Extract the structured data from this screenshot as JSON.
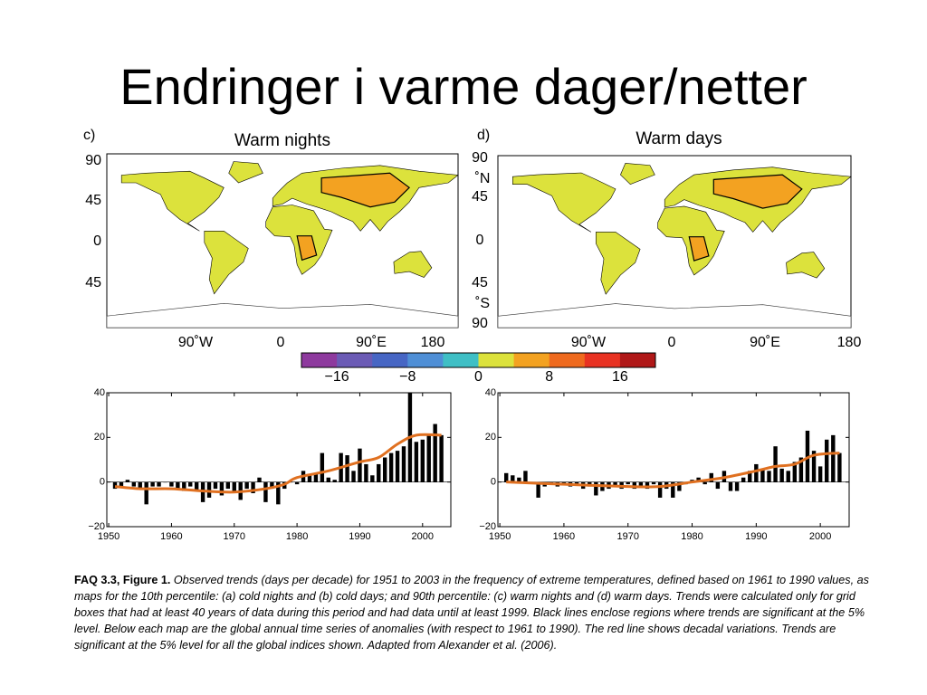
{
  "title": "Endringer i varme dager/netter",
  "maps": [
    {
      "label": "c)",
      "title": "Warm nights",
      "lat_labels": [
        "90",
        "45",
        "0",
        "45"
      ],
      "lon_labels": [
        "90˚W",
        "0",
        "90˚E",
        "180"
      ]
    },
    {
      "label": "d)",
      "title": "Warm days",
      "lat_labels": [
        "90",
        "˚N",
        "45",
        "0",
        "45",
        "˚S",
        "90"
      ],
      "lon_labels": [
        "90˚W",
        "0",
        "90˚E",
        "180"
      ]
    }
  ],
  "colorbar": {
    "lim": [
      -20,
      20
    ],
    "ticks": [
      {
        "value": -16,
        "label": "−16"
      },
      {
        "value": -8,
        "label": "−8"
      },
      0,
      8,
      16
    ],
    "colors": [
      "#8e3a9e",
      "#6b5bb5",
      "#4766c4",
      "#4f8fd6",
      "#3fbfc5",
      "#dce23c",
      "#f3a221",
      "#ef6a1e",
      "#e83222",
      "#b01818"
    ]
  },
  "chart_data": [
    {
      "type": "bar",
      "x": [
        1951,
        1952,
        1953,
        1954,
        1955,
        1956,
        1957,
        1958,
        1959,
        1960,
        1961,
        1962,
        1963,
        1964,
        1965,
        1966,
        1967,
        1968,
        1969,
        1970,
        1971,
        1972,
        1973,
        1974,
        1975,
        1976,
        1977,
        1978,
        1979,
        1980,
        1981,
        1982,
        1983,
        1984,
        1985,
        1986,
        1987,
        1988,
        1989,
        1990,
        1991,
        1992,
        1993,
        1994,
        1995,
        1996,
        1997,
        1998,
        1999,
        2000,
        2001,
        2002,
        2003
      ],
      "series": [
        {
          "color": "#000000",
          "values": [
            -3,
            -2,
            1,
            -2,
            -3,
            -10,
            -2,
            -2,
            0,
            -2,
            -3,
            -4,
            -2,
            -4,
            -9,
            -7,
            -3,
            -6,
            -3,
            -4,
            -8,
            -3,
            -5,
            2,
            -9,
            -3,
            -10,
            -3,
            0,
            -1,
            5,
            3,
            4,
            13,
            2,
            1,
            13,
            12,
            5,
            15,
            8,
            3,
            8,
            11,
            13,
            14,
            16,
            40,
            18,
            19,
            21,
            26,
            21
          ]
        },
        {
          "type": "line",
          "color": "#e07020",
          "x": [
            1951,
            1955,
            1960,
            1965,
            1970,
            1975,
            1978,
            1980,
            1985,
            1990,
            1993,
            1996,
            1999,
            2003
          ],
          "values": [
            -2,
            -3,
            -3,
            -4,
            -4.5,
            -3,
            -1,
            2,
            5,
            9,
            11,
            17,
            21,
            21
          ]
        }
      ],
      "xlim": [
        1949.7,
        2004.5
      ],
      "xticks": [
        1950,
        1960,
        1970,
        1980,
        1990,
        2000
      ],
      "ylim": [
        -20,
        40
      ],
      "yticks": [
        {
          "value": -20,
          "label": "−20"
        },
        0,
        20,
        40
      ]
    },
    {
      "type": "bar",
      "x": [
        1951,
        1952,
        1953,
        1954,
        1955,
        1956,
        1957,
        1958,
        1959,
        1960,
        1961,
        1962,
        1963,
        1964,
        1965,
        1966,
        1967,
        1968,
        1969,
        1970,
        1971,
        1972,
        1973,
        1974,
        1975,
        1976,
        1977,
        1978,
        1979,
        1980,
        1981,
        1982,
        1983,
        1984,
        1985,
        1986,
        1987,
        1988,
        1989,
        1990,
        1991,
        1992,
        1993,
        1994,
        1995,
        1996,
        1997,
        1998,
        1999,
        2000,
        2001,
        2002,
        2003
      ],
      "series": [
        {
          "color": "#000000",
          "values": [
            4,
            3,
            2,
            5,
            0,
            -7,
            -2,
            -1,
            -2,
            -1,
            -2,
            -1,
            -3,
            -2,
            -6,
            -4,
            -3,
            -2,
            -3,
            -1,
            -3,
            -2,
            -3,
            -1,
            -7,
            -3,
            -7,
            -4,
            -1,
            1,
            2,
            -1,
            4,
            -3,
            5,
            -4,
            -4,
            2,
            5,
            8,
            6,
            5,
            16,
            6,
            5,
            9,
            11,
            23,
            14,
            7,
            19,
            21,
            13
          ]
        },
        {
          "type": "line",
          "color": "#e07020",
          "x": [
            1951,
            1960,
            1970,
            1975,
            1980,
            1985,
            1990,
            1993,
            1996,
            1999,
            2003
          ],
          "values": [
            0,
            -1,
            -2,
            -2,
            0,
            2,
            5,
            7,
            8,
            12,
            13
          ]
        }
      ],
      "xlim": [
        1949.7,
        2004.5
      ],
      "xticks": [
        1950,
        1960,
        1970,
        1980,
        1990,
        2000
      ],
      "ylim": [
        -20,
        40
      ],
      "yticks": [
        {
          "value": -20,
          "label": "−20"
        },
        0,
        20,
        40
      ]
    }
  ],
  "caption": {
    "label": "FAQ 3.3, Figure 1.",
    "text": "Observed trends (days per decade) for 1951 to 2003 in the frequency of extreme temperatures, defined based on 1961 to 1990 values, as maps for the 10th percentile: (a) cold nights and (b) cold days; and 90th percentile: (c) warm nights and (d) warm days. Trends were calculated only for grid boxes that had at least 40 years of data during this period and had data until at least 1999. Black lines enclose regions where trends are significant at the 5% level. Below each map are the global annual time series of anomalies (with respect to 1961 to 1990). The red line shows decadal variations. Trends are significant at the 5% level for all the global indices shown. Adapted from Alexander et al. (2006)."
  }
}
